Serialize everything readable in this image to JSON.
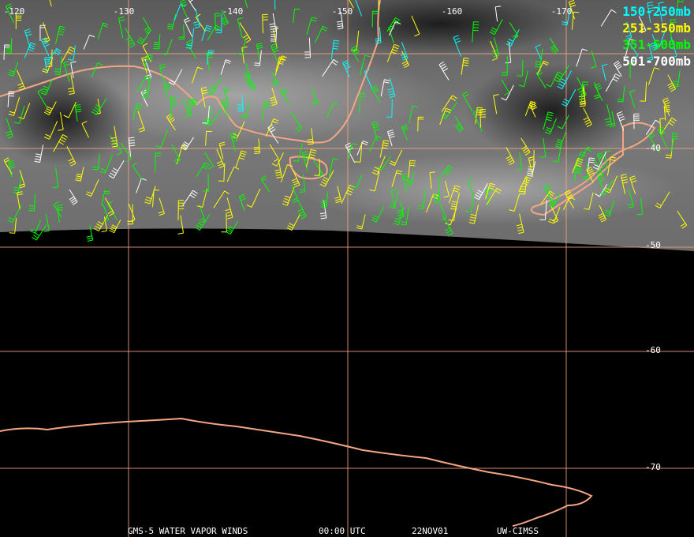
{
  "longitude_labels": [
    "-120",
    "-130",
    "-140",
    "-150",
    "-160",
    "-170"
  ],
  "latitude_labels": [
    "-40",
    "-50",
    "-60",
    "-70"
  ],
  "legend": [
    {
      "label": "150-250mb",
      "color": "#00ffff"
    },
    {
      "label": "251-350mb",
      "color": "#ffff00"
    },
    {
      "label": "351-500mb",
      "color": "#00ff00"
    },
    {
      "label": "501-700mb",
      "color": "#ffffff"
    }
  ],
  "footer": {
    "satellite": "GMS-5 WATER VAPOR WINDS",
    "time": "00:00 UTC",
    "date": "22NOV01",
    "source": "UW-CIMSS"
  }
}
